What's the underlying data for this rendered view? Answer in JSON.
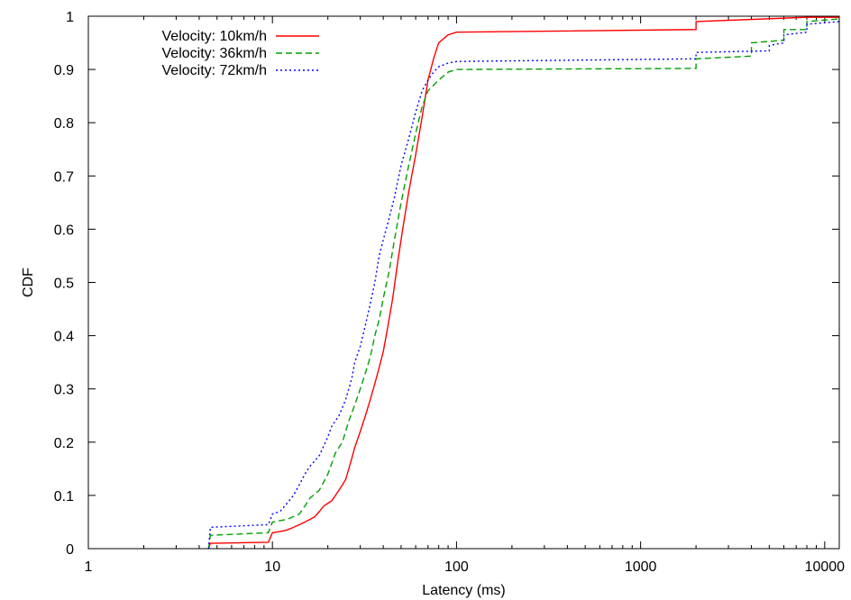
{
  "chart_data": {
    "type": "line",
    "xlabel": "Latency (ms)",
    "ylabel": "CDF",
    "xscale": "log",
    "xlim": [
      1,
      12000
    ],
    "ylim": [
      0,
      1
    ],
    "grid": false,
    "legend_position": "top-left",
    "x_ticks": [
      "1",
      "10",
      "100",
      "1000",
      "10000"
    ],
    "y_ticks": [
      "0",
      "0.1",
      "0.2",
      "0.3",
      "0.4",
      "0.5",
      "0.6",
      "0.7",
      "0.8",
      "0.9",
      "1"
    ],
    "series": [
      {
        "name": "Velocity: 10km/h",
        "color": "#ff0000",
        "dash": "solid",
        "points": [
          [
            4.5,
            0.0
          ],
          [
            4.6,
            0.01
          ],
          [
            9.5,
            0.012
          ],
          [
            10,
            0.03
          ],
          [
            11,
            0.032
          ],
          [
            12,
            0.035
          ],
          [
            13,
            0.04
          ],
          [
            14,
            0.045
          ],
          [
            15,
            0.05
          ],
          [
            16,
            0.055
          ],
          [
            17,
            0.06
          ],
          [
            18,
            0.07
          ],
          [
            19,
            0.08
          ],
          [
            20,
            0.085
          ],
          [
            21,
            0.09
          ],
          [
            22,
            0.1
          ],
          [
            23,
            0.11
          ],
          [
            24,
            0.12
          ],
          [
            25,
            0.13
          ],
          [
            26,
            0.15
          ],
          [
            27,
            0.17
          ],
          [
            28,
            0.19
          ],
          [
            30,
            0.22
          ],
          [
            32,
            0.25
          ],
          [
            34,
            0.28
          ],
          [
            36,
            0.31
          ],
          [
            38,
            0.34
          ],
          [
            40,
            0.37
          ],
          [
            42,
            0.41
          ],
          [
            45,
            0.47
          ],
          [
            48,
            0.54
          ],
          [
            51,
            0.6
          ],
          [
            55,
            0.67
          ],
          [
            60,
            0.74
          ],
          [
            65,
            0.81
          ],
          [
            70,
            0.88
          ],
          [
            75,
            0.92
          ],
          [
            80,
            0.95
          ],
          [
            90,
            0.965
          ],
          [
            100,
            0.97
          ],
          [
            2000,
            0.975
          ],
          [
            2001,
            0.99
          ],
          [
            8000,
            0.998
          ],
          [
            12000,
            0.998
          ]
        ]
      },
      {
        "name": "Velocity: 36km/h",
        "color": "#00a000",
        "dash": "dashed",
        "points": [
          [
            4.5,
            0.0
          ],
          [
            4.6,
            0.025
          ],
          [
            9.5,
            0.03
          ],
          [
            10,
            0.05
          ],
          [
            12,
            0.055
          ],
          [
            14,
            0.065
          ],
          [
            15,
            0.08
          ],
          [
            16,
            0.095
          ],
          [
            18,
            0.11
          ],
          [
            20,
            0.14
          ],
          [
            21,
            0.16
          ],
          [
            22,
            0.18
          ],
          [
            24,
            0.2
          ],
          [
            26,
            0.24
          ],
          [
            28,
            0.27
          ],
          [
            30,
            0.3
          ],
          [
            32,
            0.33
          ],
          [
            34,
            0.36
          ],
          [
            36,
            0.4
          ],
          [
            38,
            0.43
          ],
          [
            40,
            0.47
          ],
          [
            43,
            0.52
          ],
          [
            46,
            0.58
          ],
          [
            50,
            0.65
          ],
          [
            55,
            0.72
          ],
          [
            60,
            0.78
          ],
          [
            65,
            0.83
          ],
          [
            70,
            0.86
          ],
          [
            80,
            0.88
          ],
          [
            90,
            0.895
          ],
          [
            100,
            0.9
          ],
          [
            2000,
            0.902
          ],
          [
            2001,
            0.92
          ],
          [
            4000,
            0.925
          ],
          [
            4001,
            0.95
          ],
          [
            6000,
            0.955
          ],
          [
            6001,
            0.975
          ],
          [
            8000,
            0.975
          ],
          [
            8001,
            0.99
          ],
          [
            12000,
            0.995
          ]
        ]
      },
      {
        "name": "Velocity: 72km/h",
        "color": "#0000ff",
        "dash": "dotted",
        "points": [
          [
            4.5,
            0.0
          ],
          [
            4.6,
            0.04
          ],
          [
            9.5,
            0.045
          ],
          [
            10,
            0.065
          ],
          [
            11,
            0.07
          ],
          [
            12,
            0.085
          ],
          [
            13,
            0.1
          ],
          [
            14,
            0.12
          ],
          [
            15,
            0.14
          ],
          [
            16,
            0.155
          ],
          [
            17,
            0.165
          ],
          [
            18,
            0.175
          ],
          [
            20,
            0.21
          ],
          [
            21,
            0.23
          ],
          [
            23,
            0.25
          ],
          [
            25,
            0.28
          ],
          [
            27,
            0.32
          ],
          [
            28,
            0.35
          ],
          [
            30,
            0.38
          ],
          [
            32,
            0.42
          ],
          [
            34,
            0.46
          ],
          [
            36,
            0.5
          ],
          [
            38,
            0.55
          ],
          [
            40,
            0.58
          ],
          [
            43,
            0.62
          ],
          [
            46,
            0.66
          ],
          [
            50,
            0.72
          ],
          [
            55,
            0.77
          ],
          [
            60,
            0.82
          ],
          [
            65,
            0.86
          ],
          [
            70,
            0.88
          ],
          [
            75,
            0.895
          ],
          [
            80,
            0.905
          ],
          [
            90,
            0.912
          ],
          [
            100,
            0.915
          ],
          [
            2000,
            0.92
          ],
          [
            2001,
            0.932
          ],
          [
            5000,
            0.935
          ],
          [
            5001,
            0.945
          ],
          [
            6000,
            0.95
          ],
          [
            6001,
            0.965
          ],
          [
            8000,
            0.97
          ],
          [
            8001,
            0.985
          ],
          [
            12000,
            0.99
          ]
        ]
      }
    ]
  }
}
